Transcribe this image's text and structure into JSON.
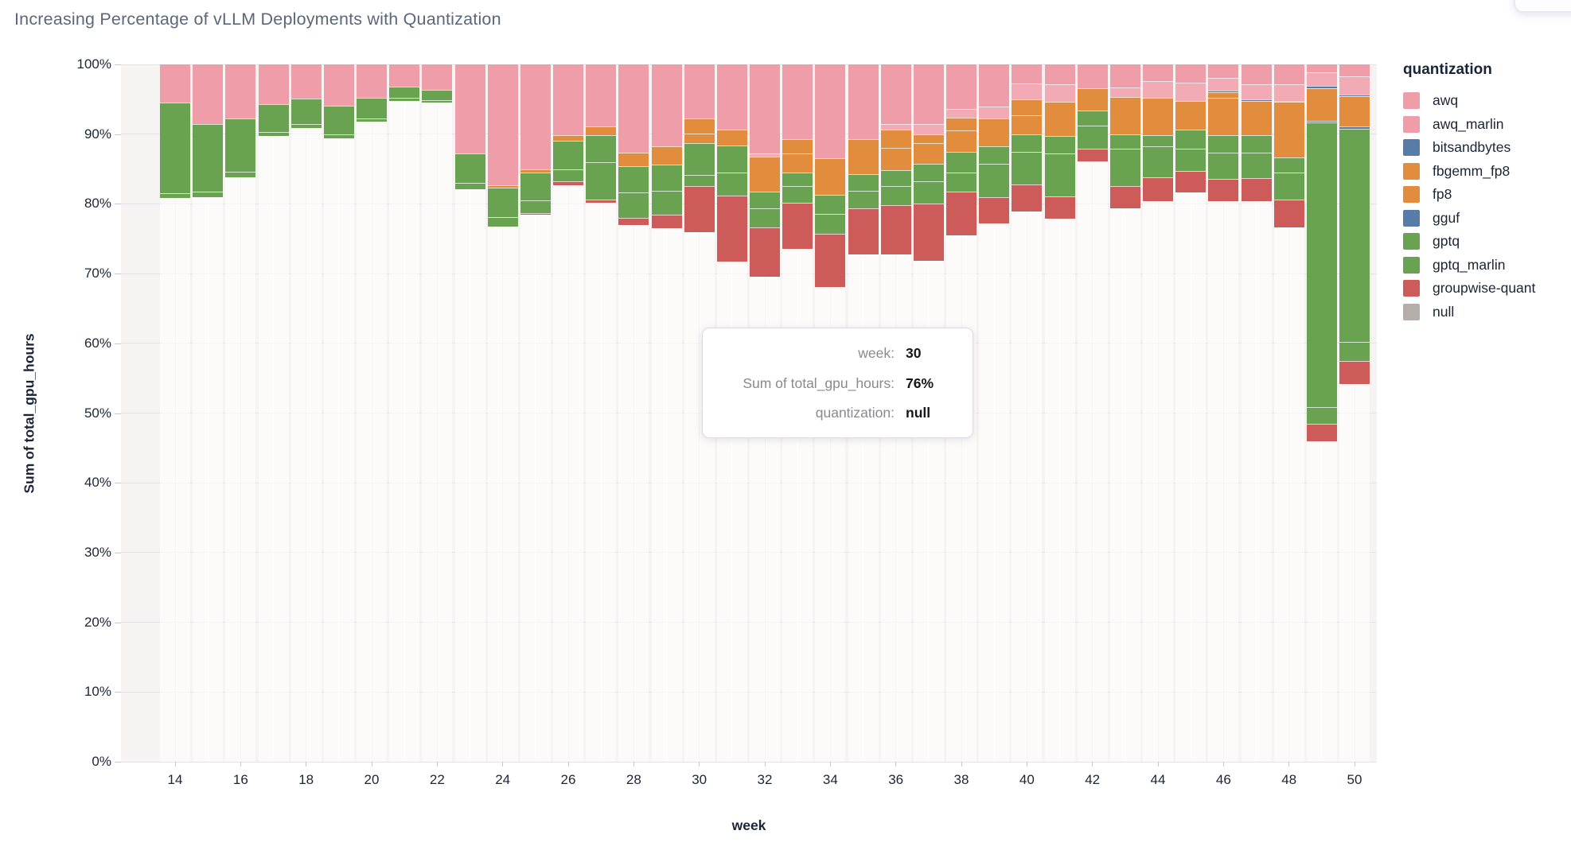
{
  "legend": {
    "title": "quantization",
    "items": [
      {
        "label": "awq",
        "color": "#ef9ea9"
      },
      {
        "label": "awq_marlin",
        "color": "#ef9ea9"
      },
      {
        "label": "bitsandbytes",
        "color": "#587ca8"
      },
      {
        "label": "fbgemm_fp8",
        "color": "#e28c3d"
      },
      {
        "label": "fp8",
        "color": "#e28c3d"
      },
      {
        "label": "gguf",
        "color": "#587ca8"
      },
      {
        "label": "gptq",
        "color": "#69a351"
      },
      {
        "label": "gptq_marlin",
        "color": "#69a351"
      },
      {
        "label": "groupwise-quant",
        "color": "#cc5b59"
      },
      {
        "label": "null",
        "color": "#b5adaa"
      }
    ]
  },
  "tooltip": {
    "rows": [
      {
        "label": "week:",
        "value": "30"
      },
      {
        "label": "Sum of total_gpu_hours:",
        "value": "76%"
      },
      {
        "label": "quantization:",
        "value": "null"
      }
    ]
  },
  "chart_data": {
    "type": "bar",
    "stacked": true,
    "units": "percent",
    "title": "Increasing Percentage of vLLM Deployments with Quantization",
    "xlabel": "week",
    "ylabel": "Sum of total_gpu_hours",
    "ylim": [
      0,
      100
    ],
    "grid": true,
    "legend_position": "right",
    "y_tick_labels": [
      "0%",
      "10%",
      "20%",
      "30%",
      "40%",
      "50%",
      "60%",
      "70%",
      "80%",
      "90%",
      "100%"
    ],
    "x_ticks": [
      14,
      16,
      18,
      20,
      22,
      24,
      26,
      28,
      30,
      32,
      34,
      36,
      38,
      40,
      42,
      44,
      46,
      48,
      50
    ],
    "categories": [
      14,
      15,
      16,
      17,
      18,
      19,
      20,
      21,
      22,
      23,
      24,
      25,
      26,
      27,
      28,
      29,
      30,
      31,
      32,
      33,
      34,
      35,
      36,
      37,
      38,
      39,
      40,
      41,
      42,
      43,
      44,
      45,
      46,
      47,
      48,
      49,
      50
    ],
    "series": [
      {
        "name": "null",
        "color": "rgba(255,255,255,0.62)",
        "values": [
          80.8,
          81.0,
          83.8,
          89.7,
          90.9,
          89.4,
          91.8,
          94.8,
          94.5,
          82.1,
          76.7,
          78.4,
          82.7,
          80.2,
          77.0,
          76.5,
          75.9,
          71.7,
          69.6,
          73.5,
          68.1,
          72.8,
          72.8,
          71.8,
          75.5,
          77.2,
          78.9,
          77.9,
          86.1,
          79.4,
          80.4,
          81.6,
          80.4,
          80.4,
          76.6,
          45.9,
          54.2
        ]
      },
      {
        "name": "groupwise-quant",
        "color": "#cc5b59",
        "values": [
          0,
          0,
          0,
          0,
          0,
          0,
          0,
          0,
          0,
          0,
          0,
          0.3,
          0.5,
          0.4,
          1.0,
          1.9,
          6.6,
          9.5,
          7.0,
          6.7,
          7.6,
          6.6,
          7.0,
          8.2,
          6.2,
          3.7,
          3.9,
          3.2,
          1.8,
          3.1,
          3.4,
          3.1,
          3.2,
          3.3,
          4.0,
          2.6,
          3.3
        ]
      },
      {
        "name": "gptq_marlin",
        "color": "#69a351",
        "values": [
          0.7,
          0.7,
          0.8,
          0.6,
          0.5,
          0.6,
          0.5,
          0.4,
          0.4,
          0.9,
          1.4,
          1.8,
          1.7,
          5.4,
          3.6,
          3.5,
          1.7,
          3.3,
          2.8,
          2.3,
          2.9,
          2.5,
          2.7,
          3.2,
          2.8,
          4.8,
          4.6,
          6.1,
          3.3,
          5.4,
          4.4,
          3.2,
          3.7,
          3.6,
          3.9,
          2.3,
          2.7
        ]
      },
      {
        "name": "gptq",
        "color": "#69a351",
        "values": [
          13.0,
          9.8,
          7.7,
          4.0,
          3.7,
          4.1,
          2.9,
          1.6,
          1.5,
          4.2,
          4.2,
          4.0,
          4.1,
          3.9,
          3.8,
          3.7,
          4.5,
          3.9,
          2.3,
          2.0,
          2.7,
          2.4,
          2.3,
          2.5,
          2.9,
          2.5,
          2.6,
          2.5,
          2.2,
          2.1,
          1.7,
          2.7,
          2.6,
          2.5,
          2.1,
          40.9,
          30.6
        ]
      },
      {
        "name": "gguf",
        "color": "#587ca8",
        "values": [
          0,
          0,
          0,
          0,
          0,
          0,
          0,
          0,
          0,
          0,
          0,
          0,
          0,
          0,
          0,
          0,
          0,
          0,
          0,
          0,
          0,
          0,
          0,
          0,
          0,
          0,
          0,
          0,
          0,
          0,
          0,
          0,
          0,
          0,
          0,
          0.2,
          0.3
        ]
      },
      {
        "name": "fp8",
        "color": "#e28c3d",
        "values": [
          0,
          0,
          0,
          0,
          0,
          0,
          0,
          0,
          0,
          0,
          0.4,
          0.4,
          0.8,
          1.2,
          2.0,
          2.6,
          1.4,
          2.2,
          5.1,
          2.7,
          5.2,
          5.0,
          3.2,
          3.0,
          3.1,
          4.1,
          2.7,
          4.9,
          3.2,
          5.3,
          5.3,
          4.2,
          5.3,
          5.0,
          8.0,
          4.7,
          4.3
        ]
      },
      {
        "name": "fbgemm_fp8",
        "color": "#e28c3d",
        "values": [
          0,
          0,
          0,
          0,
          0,
          0,
          0,
          0,
          0,
          0,
          0,
          0,
          0,
          0,
          0,
          0,
          2.1,
          0,
          0,
          2.1,
          0,
          0,
          2.6,
          1.3,
          1.9,
          0,
          2.3,
          0,
          0,
          0,
          0,
          0,
          0.8,
          0,
          0,
          0,
          0
        ]
      },
      {
        "name": "bitsandbytes",
        "color": "#587ca8",
        "values": [
          0,
          0,
          0,
          0,
          0,
          0,
          0,
          0,
          0,
          0,
          0,
          0,
          0,
          0,
          0,
          0,
          0,
          0,
          0,
          0,
          0,
          0,
          0,
          0,
          0,
          0,
          0,
          0,
          0,
          0,
          0,
          0,
          0.2,
          0.2,
          0.2,
          0.3,
          0.3
        ]
      },
      {
        "name": "awq_marlin",
        "color": "#f2abb4",
        "values": [
          0,
          0,
          0,
          0,
          0,
          0,
          0,
          0,
          0,
          0,
          0,
          0,
          0,
          0,
          0,
          0,
          0,
          0,
          0.4,
          0,
          0,
          0,
          0.8,
          1.4,
          1.2,
          1.7,
          2.3,
          2.6,
          0,
          1.4,
          2.4,
          2.6,
          1.9,
          2.2,
          2.3,
          2.0,
          2.6
        ]
      },
      {
        "name": "awq",
        "color": "#ef9ea9",
        "values": [
          5.5,
          8.5,
          7.7,
          5.7,
          4.9,
          5.9,
          4.8,
          3.2,
          3.6,
          12.8,
          17.3,
          15.1,
          10.2,
          8.9,
          12.6,
          11.8,
          7.8,
          9.4,
          12.8,
          10.7,
          13.5,
          10.7,
          8.6,
          8.6,
          6.4,
          6.0,
          2.7,
          2.8,
          3.4,
          3.3,
          2.4,
          2.6,
          1.9,
          2.8,
          2.9,
          1.1,
          1.7
        ]
      }
    ]
  }
}
